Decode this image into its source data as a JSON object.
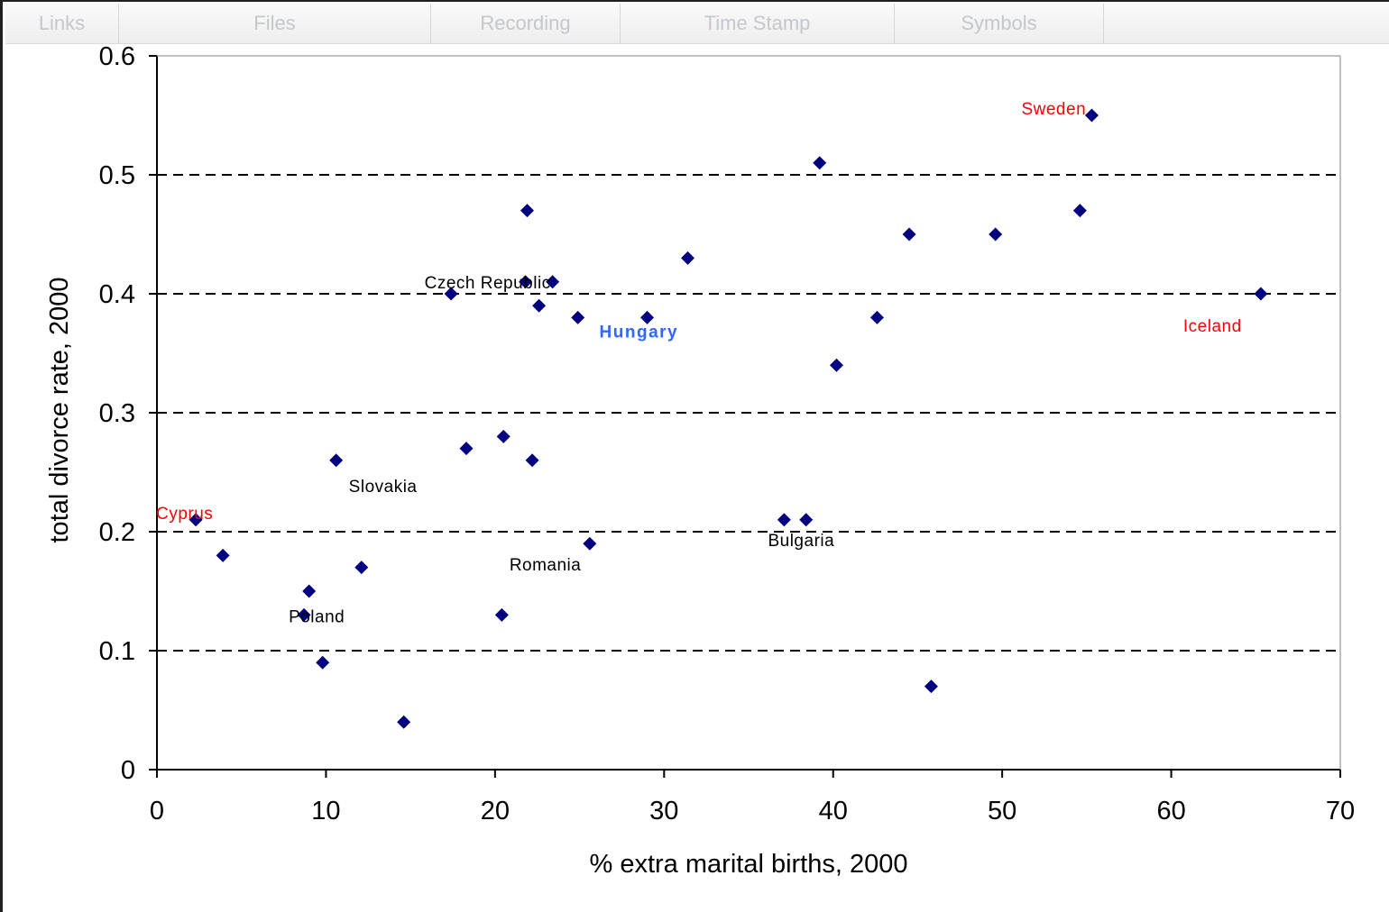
{
  "tabs": [
    {
      "label": "Links"
    },
    {
      "label": "Files"
    },
    {
      "label": "Recording"
    },
    {
      "label": "Time Stamp"
    },
    {
      "label": "Symbols"
    }
  ],
  "chart_data": {
    "type": "scatter",
    "xlabel": "% extra marital births, 2000",
    "ylabel": "total divorce rate, 2000",
    "xlim": [
      0,
      70
    ],
    "ylim": [
      0,
      0.6
    ],
    "x_ticks": [
      "0",
      "10",
      "20",
      "30",
      "40",
      "50",
      "60",
      "70"
    ],
    "y_ticks": [
      "0",
      "0.1",
      "0.2",
      "0.3",
      "0.4",
      "0.5",
      "0.6"
    ],
    "grid": "horizontal dashed",
    "marker": "diamond",
    "marker_color": "#000080",
    "series": [
      {
        "points": [
          {
            "x": 2.3,
            "y": 0.21
          },
          {
            "x": 3.9,
            "y": 0.18
          },
          {
            "x": 8.7,
            "y": 0.13
          },
          {
            "x": 9.0,
            "y": 0.15
          },
          {
            "x": 9.8,
            "y": 0.09
          },
          {
            "x": 10.6,
            "y": 0.26
          },
          {
            "x": 12.1,
            "y": 0.17
          },
          {
            "x": 14.6,
            "y": 0.04
          },
          {
            "x": 17.4,
            "y": 0.4
          },
          {
            "x": 18.3,
            "y": 0.27
          },
          {
            "x": 20.4,
            "y": 0.13
          },
          {
            "x": 20.5,
            "y": 0.28
          },
          {
            "x": 21.8,
            "y": 0.41
          },
          {
            "x": 21.9,
            "y": 0.47
          },
          {
            "x": 22.2,
            "y": 0.26
          },
          {
            "x": 22.6,
            "y": 0.39
          },
          {
            "x": 23.4,
            "y": 0.41
          },
          {
            "x": 24.9,
            "y": 0.38
          },
          {
            "x": 25.6,
            "y": 0.19
          },
          {
            "x": 29.0,
            "y": 0.38
          },
          {
            "x": 31.4,
            "y": 0.43
          },
          {
            "x": 37.1,
            "y": 0.21
          },
          {
            "x": 38.4,
            "y": 0.21
          },
          {
            "x": 39.2,
            "y": 0.51
          },
          {
            "x": 40.2,
            "y": 0.34
          },
          {
            "x": 42.6,
            "y": 0.38
          },
          {
            "x": 44.5,
            "y": 0.45
          },
          {
            "x": 45.8,
            "y": 0.07
          },
          {
            "x": 49.6,
            "y": 0.45
          },
          {
            "x": 54.6,
            "y": 0.47
          },
          {
            "x": 55.3,
            "y": 0.55
          },
          {
            "x": 65.3,
            "y": 0.4
          }
        ]
      }
    ],
    "annotations": [
      {
        "text": "Sweden",
        "x": 55.3,
        "y": 0.55,
        "color": "#ff0000"
      },
      {
        "text": "Czech Republic",
        "x": 21.8,
        "y": 0.41,
        "color": "#000000"
      },
      {
        "text": "Hungary",
        "x": 29.0,
        "y": 0.38,
        "color": "#3366ff"
      },
      {
        "text": "Iceland",
        "x": 65.3,
        "y": 0.4,
        "color": "#ff0000"
      },
      {
        "text": "Slovakia",
        "x": 10.6,
        "y": 0.26,
        "color": "#000000"
      },
      {
        "text": "Cyprus",
        "x": 2.3,
        "y": 0.21,
        "color": "#ff0000"
      },
      {
        "text": "Bulgaria",
        "x": 37.8,
        "y": 0.21,
        "color": "#000000"
      },
      {
        "text": "Romania",
        "x": 25.6,
        "y": 0.19,
        "color": "#000000"
      },
      {
        "text": "Poland",
        "x": 8.7,
        "y": 0.13,
        "color": "#000000"
      }
    ]
  }
}
